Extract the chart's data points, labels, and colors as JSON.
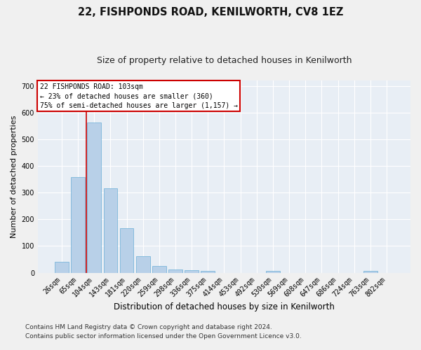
{
  "title1": "22, FISHPONDS ROAD, KENILWORTH, CV8 1EZ",
  "title2": "Size of property relative to detached houses in Kenilworth",
  "xlabel": "Distribution of detached houses by size in Kenilworth",
  "ylabel": "Number of detached properties",
  "bar_color": "#b8d0e8",
  "bar_edge_color": "#6aaed6",
  "background_color": "#e8eef5",
  "grid_color": "#ffffff",
  "categories": [
    "26sqm",
    "65sqm",
    "104sqm",
    "143sqm",
    "181sqm",
    "220sqm",
    "259sqm",
    "298sqm",
    "336sqm",
    "375sqm",
    "414sqm",
    "453sqm",
    "492sqm",
    "530sqm",
    "569sqm",
    "608sqm",
    "647sqm",
    "686sqm",
    "724sqm",
    "763sqm",
    "802sqm"
  ],
  "values": [
    40,
    357,
    562,
    317,
    168,
    62,
    24,
    12,
    10,
    7,
    0,
    0,
    0,
    6,
    0,
    0,
    0,
    0,
    0,
    7,
    0
  ],
  "ylim": [
    0,
    720
  ],
  "yticks": [
    0,
    100,
    200,
    300,
    400,
    500,
    600,
    700
  ],
  "red_line_index": 2,
  "annotation_text1": "22 FISHPONDS ROAD: 103sqm",
  "annotation_text2": "← 23% of detached houses are smaller (360)",
  "annotation_text3": "75% of semi-detached houses are larger (1,157) →",
  "annotation_box_color": "#ffffff",
  "annotation_border_color": "#cc0000",
  "red_line_color": "#cc0000",
  "footnote1": "Contains HM Land Registry data © Crown copyright and database right 2024.",
  "footnote2": "Contains public sector information licensed under the Open Government Licence v3.0.",
  "title1_fontsize": 10.5,
  "title2_fontsize": 9,
  "xlabel_fontsize": 8.5,
  "ylabel_fontsize": 8,
  "tick_fontsize": 7,
  "annotation_fontsize": 7,
  "footnote_fontsize": 6.5,
  "fig_facecolor": "#f0f0f0"
}
